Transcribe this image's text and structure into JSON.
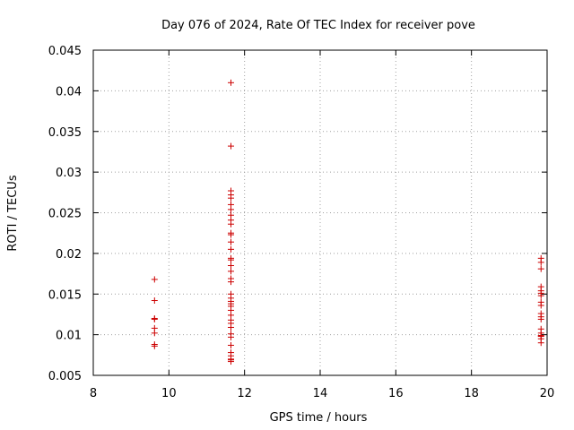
{
  "chart_data": {
    "type": "scatter",
    "title": "Day 076 of 2024, Rate Of TEC Index for receiver pove",
    "xlabel": "GPS time / hours",
    "ylabel": "ROTI / TECUs",
    "xlim": [
      8,
      20
    ],
    "ylim": [
      0.005,
      0.045
    ],
    "xticks": [
      8,
      10,
      12,
      14,
      16,
      18,
      20
    ],
    "yticks": [
      0.005,
      0.01,
      0.015,
      0.02,
      0.025,
      0.03,
      0.035,
      0.04,
      0.045
    ],
    "xtick_labels": [
      "8",
      "10",
      "12",
      "14",
      "16",
      "18",
      "20"
    ],
    "ytick_labels": [
      "0.005",
      "0.01",
      "0.015",
      "0.02",
      "0.025",
      "0.03",
      "0.035",
      "0.04",
      "0.045"
    ],
    "grid": true,
    "marker": "+",
    "marker_color": "#cc0000",
    "series": [
      {
        "name": "ROTI",
        "x": [
          9.62,
          9.62,
          9.62,
          9.62,
          9.62,
          9.62,
          9.62,
          9.62,
          11.64,
          11.64,
          11.64,
          11.64,
          11.64,
          11.64,
          11.64,
          11.64,
          11.64,
          11.64,
          11.64,
          11.64,
          11.64,
          11.64,
          11.64,
          11.64,
          11.64,
          11.64,
          11.64,
          11.64,
          11.64,
          11.64,
          11.64,
          11.64,
          11.64,
          11.64,
          11.64,
          11.64,
          11.64,
          11.64,
          11.64,
          11.64,
          11.64,
          11.64,
          11.64,
          11.64,
          11.64,
          11.64,
          19.84,
          19.84,
          19.84,
          19.84,
          19.84,
          19.84,
          19.84,
          19.84,
          19.84,
          19.84,
          19.84,
          19.84,
          19.84,
          19.84,
          19.84,
          19.84,
          19.84,
          19.84
        ],
        "y": [
          0.0168,
          0.0142,
          0.012,
          0.0119,
          0.0108,
          0.0102,
          0.0088,
          0.0086,
          0.041,
          0.0332,
          0.0277,
          0.0272,
          0.0268,
          0.026,
          0.0254,
          0.0247,
          0.0241,
          0.0236,
          0.0225,
          0.0223,
          0.0214,
          0.0205,
          0.0194,
          0.0192,
          0.0185,
          0.0178,
          0.0169,
          0.0165,
          0.015,
          0.0145,
          0.0141,
          0.0138,
          0.0135,
          0.013,
          0.0124,
          0.0118,
          0.0114,
          0.0109,
          0.0101,
          0.0097,
          0.0087,
          0.0078,
          0.0074,
          0.007,
          0.0067,
          0.0069,
          0.0194,
          0.0189,
          0.0181,
          0.0159,
          0.0154,
          0.0151,
          0.0148,
          0.014,
          0.0136,
          0.0126,
          0.0122,
          0.0119,
          0.0107,
          0.0102,
          0.0099,
          0.0098,
          0.0095,
          0.009
        ]
      }
    ]
  }
}
